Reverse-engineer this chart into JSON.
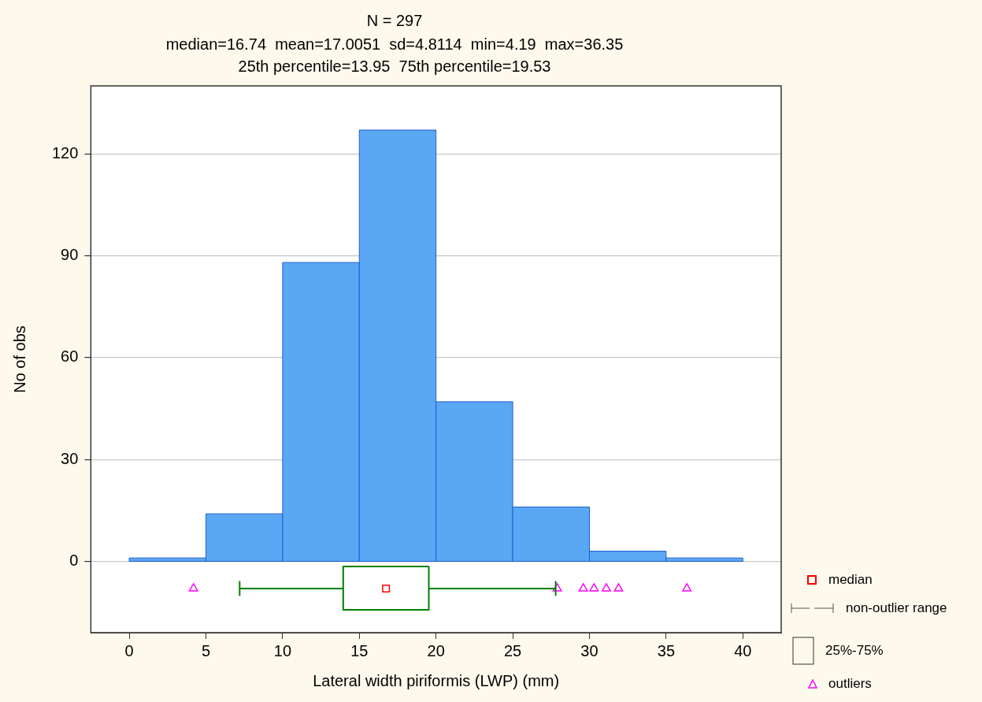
{
  "chart_data": {
    "type": "histogram",
    "title": "N = 297",
    "subtitle": "median=16.74  mean=17.0051  sd=4.8114  min=4.19  max=36.35\n25th percentile=13.95  75th percentile=19.53",
    "xlabel": "Lateral width piriformis (LWP) (mm)",
    "ylabel": "No of obs",
    "xlim": [
      -2.5,
      42.5
    ],
    "xticks": [
      0,
      5,
      10,
      15,
      20,
      25,
      30,
      35,
      40
    ],
    "ylim": [
      -21,
      140
    ],
    "yticks": [
      0,
      30,
      60,
      90,
      120
    ],
    "grid": "y",
    "annotations": [
      "median",
      "non-outlier range",
      "25%-75%",
      "outliers"
    ],
    "series": [
      {
        "color": "#5aa7f4",
        "bins": [
          0,
          5,
          10,
          15,
          20,
          25,
          30,
          35,
          40
        ],
        "values": [
          1,
          14,
          88,
          127,
          47,
          16,
          3,
          1
        ]
      },
      {
        "type": "line",
        "color": "#008000",
        "x": [
          7.2,
          7.2,
          7.2,
          13.95
        ],
        "values": [
          -6,
          -10,
          -8,
          -8
        ]
      },
      {
        "type": "line",
        "color": "#008000",
        "x": [
          19.53,
          27.8,
          27.8,
          27.8
        ],
        "values": [
          -8,
          -8,
          -6,
          -10
        ]
      },
      {
        "type": "line",
        "color": "#008000",
        "x": [
          13.95,
          13.95,
          19.53,
          19.53
        ],
        "values": [
          -1.5,
          -14.3,
          -14.3,
          -1.5
        ]
      },
      {
        "type": "line",
        "color": "#008000",
        "x": [
          13.95,
          19.53
        ],
        "values": [
          -1.5,
          -1.5
        ]
      },
      {
        "type": "scatter",
        "color": "#ff0000",
        "marker": "square",
        "x": [
          16.74
        ],
        "values": [
          -8
        ]
      },
      {
        "type": "scatter",
        "color": "#ff00ff",
        "marker": "triangle",
        "x": [
          4.19,
          27.9,
          29.6,
          30.3,
          31.1,
          31.9,
          36.35
        ],
        "values": [
          -8,
          -8,
          -8,
          -8,
          -8,
          -8,
          -8
        ]
      }
    ]
  }
}
